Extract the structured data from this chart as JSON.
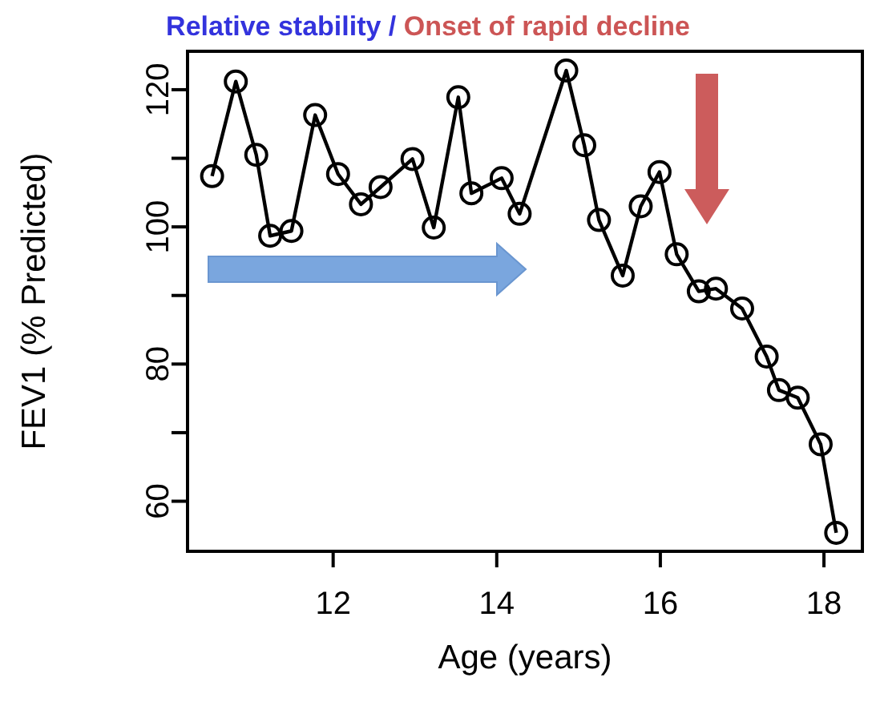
{
  "chart_data": {
    "type": "line",
    "xlabel": "Age (years)",
    "ylabel": "FEV1 (% Predicted)",
    "annotations": [
      "Relative stability /",
      "Onset of rapid decline"
    ],
    "x": [
      10.52,
      10.81,
      11.06,
      11.23,
      11.49,
      11.78,
      12.06,
      12.34,
      12.58,
      12.97,
      13.23,
      13.53,
      13.69,
      14.06,
      14.28,
      14.85,
      15.07,
      15.25,
      15.54,
      15.76,
      15.99,
      16.2,
      16.47,
      16.68,
      17.0,
      17.3,
      17.45,
      17.68,
      17.96,
      18.15
    ],
    "series": [
      {
        "color": "#000000",
        "values": [
          107.4,
          121.2,
          110.5,
          98.7,
          99.4,
          116.3,
          107.7,
          103.3,
          105.8,
          109.9,
          99.9,
          118.9,
          104.9,
          107.1,
          101.9,
          122.8,
          111.9,
          101.0,
          92.9,
          103.0,
          108.0,
          96.0,
          90.6,
          91.0,
          88.1,
          81.1,
          76.2,
          75.1,
          68.3,
          55.4
        ]
      }
    ],
    "xlim": [
      10.22,
      18.47
    ],
    "ylim": [
      52.7,
      125.6
    ],
    "xticks": [
      12,
      14,
      16,
      18
    ],
    "yticks": [
      120,
      {
        "value": 110,
        "label": null
      },
      100,
      {
        "value": 90,
        "label": null
      },
      80,
      {
        "value": 70,
        "label": null
      },
      60
    ],
    "marker": "circle",
    "line_style": "solid",
    "grid": false
  }
}
